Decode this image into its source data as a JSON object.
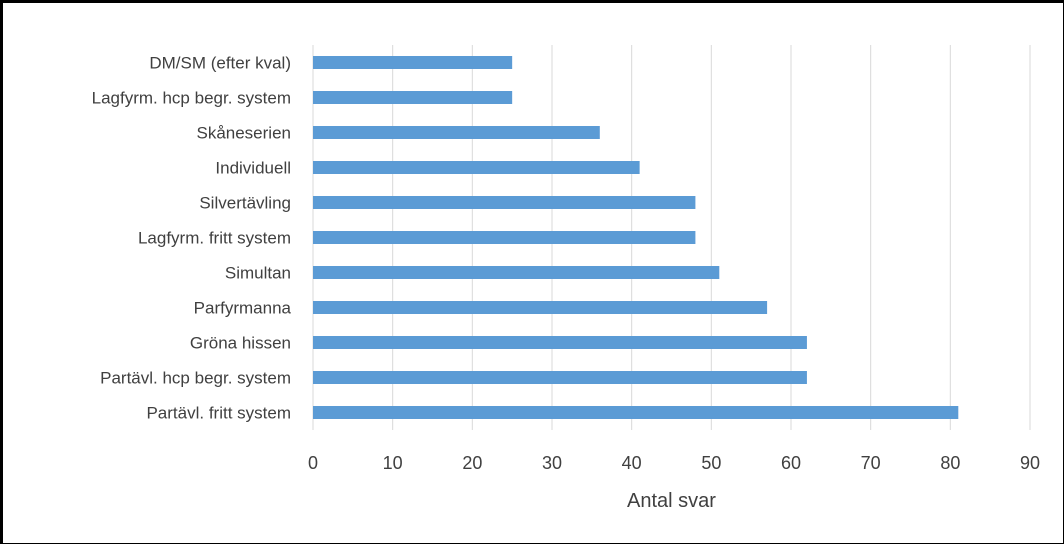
{
  "chart_data": {
    "type": "bar",
    "orientation": "horizontal",
    "categories": [
      "DM/SM (efter kval)",
      "Lagfyrm. hcp begr. system",
      "Skåneserien",
      "Individuell",
      "Silvertävling",
      "Lagfyrm. fritt system",
      "Simultan",
      "Parfyrmanna",
      "Gröna hissen",
      "Partävl. hcp begr. system",
      "Partävl. fritt system"
    ],
    "values": [
      25,
      25,
      36,
      41,
      48,
      48,
      51,
      57,
      62,
      62,
      81
    ],
    "xlabel": "Antal svar",
    "ylabel": "",
    "xlim": [
      0,
      90
    ],
    "xticks": [
      "0",
      "10",
      "20",
      "30",
      "40",
      "50",
      "60",
      "70",
      "80",
      "90"
    ],
    "grid": true,
    "legend": "none",
    "colors": {
      "bar": "#5B9BD5",
      "grid": "#D9D9D9",
      "text": "#404040",
      "border": "#000000"
    }
  }
}
